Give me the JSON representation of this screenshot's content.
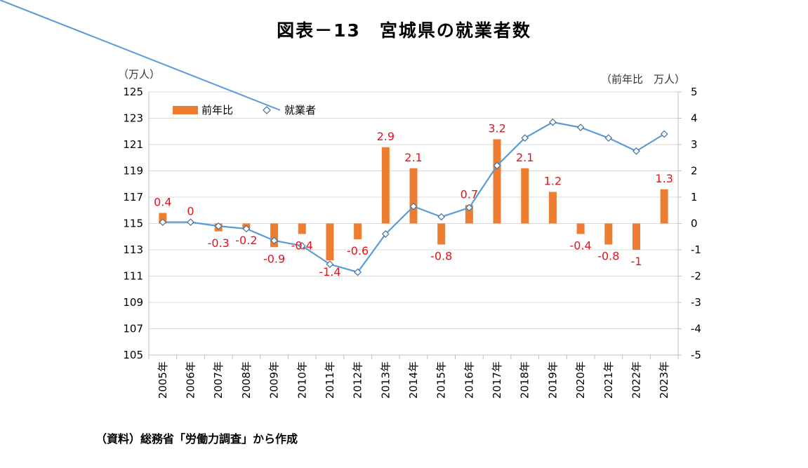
{
  "title": "図表－13　宮城県の就業者数",
  "source": "（資料）総務省「労働力調査」から作成",
  "chart_data": {
    "type": "bar+line",
    "left_axis": {
      "unit_label": "（万人）",
      "min": 105,
      "max": 125,
      "ticks": [
        105,
        107,
        109,
        111,
        113,
        115,
        117,
        119,
        121,
        123,
        125
      ]
    },
    "right_axis": {
      "unit_label": "（前年比　万人）",
      "min": -5,
      "max": 5,
      "ticks": [
        -5,
        -4,
        -3,
        -2,
        -1,
        0,
        1,
        2,
        3,
        4,
        5
      ]
    },
    "categories": [
      "2005年",
      "2006年",
      "2007年",
      "2008年",
      "2009年",
      "2010年",
      "2011年",
      "2012年",
      "2013年",
      "2014年",
      "2015年",
      "2016年",
      "2017年",
      "2018年",
      "2019年",
      "2020年",
      "2021年",
      "2022年",
      "2023年"
    ],
    "bar_series": {
      "name": "前年比",
      "axis": "right",
      "color": "#ed7d31",
      "values": [
        0.4,
        0,
        -0.3,
        -0.2,
        -0.9,
        -0.4,
        -1.4,
        -0.6,
        2.9,
        2.1,
        -0.8,
        0.7,
        3.2,
        2.1,
        1.2,
        -0.4,
        -0.8,
        -1,
        1.3
      ],
      "labels": [
        "0.4",
        "0",
        "-0.3",
        "-0.2",
        "-0.9",
        "-0.4",
        "-1.4",
        "-0.6",
        "2.9",
        "2.1",
        "-0.8",
        "0.7",
        "3.2",
        "2.1",
        "1.2",
        "-0.4",
        "-0.8",
        "-1",
        "1.3"
      ]
    },
    "line_series": {
      "name": "就業者",
      "axis": "left",
      "color": "#5b9bd5",
      "values": [
        115.1,
        115.1,
        114.8,
        114.6,
        113.7,
        113.3,
        111.9,
        111.3,
        114.2,
        116.3,
        115.5,
        116.2,
        119.4,
        121.5,
        122.7,
        122.3,
        121.5,
        120.5,
        121.8
      ]
    },
    "legend_position": "top-left"
  }
}
